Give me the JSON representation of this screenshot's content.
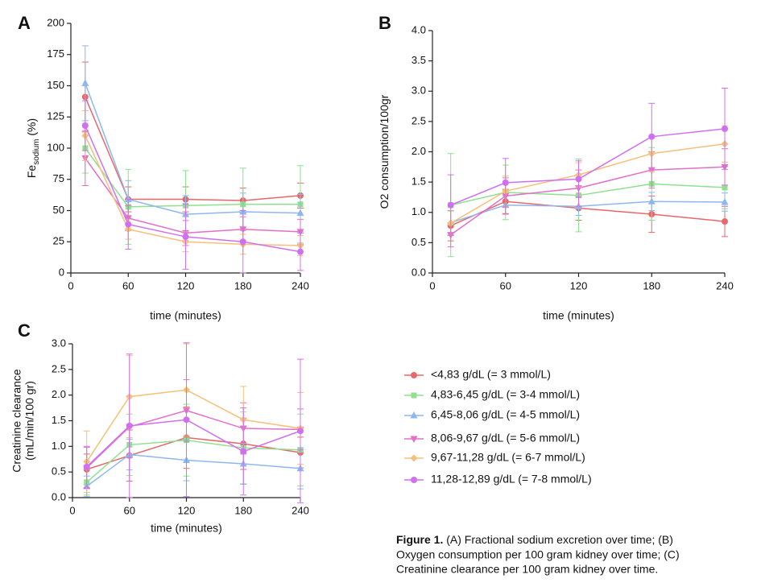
{
  "chart_data": [
    {
      "type": "line",
      "label": "A",
      "ylabel": {
        "main": "Fe",
        "sub": "sodium",
        "suffix": " (%)"
      },
      "xlabel": "time (minutes)",
      "x": [
        15,
        60,
        120,
        180,
        240
      ],
      "xlim": [
        0,
        240
      ],
      "xticks": [
        0,
        60,
        120,
        180,
        240
      ],
      "ylim": [
        0,
        200
      ],
      "yticks": [
        0,
        25,
        50,
        75,
        100,
        125,
        150,
        175,
        200
      ],
      "series": [
        {
          "name": "<4,83 g/dL (= 3 mmol/L)",
          "color": "#e8676b",
          "marker": "circle",
          "values": [
            141,
            59,
            59,
            58,
            62
          ],
          "errors": [
            28,
            10,
            10,
            10,
            10
          ]
        },
        {
          "name": "4,83-6,45 g/dL (= 3-4 mmol/L)",
          "color": "#8fe08f",
          "marker": "square",
          "values": [
            100,
            53,
            54,
            55,
            55
          ],
          "errors": [
            20,
            30,
            28,
            29,
            31
          ]
        },
        {
          "name": "6,45-8,06 g/dL (= 4-5 mmol/L)",
          "color": "#8db8ee",
          "marker": "triangle-up",
          "values": [
            152,
            59,
            47,
            49,
            48
          ],
          "errors": [
            30,
            15,
            15,
            15,
            15
          ]
        },
        {
          "name": "8,06-9,67 g/dL (= 5-6 mmol/L)",
          "color": "#e070c8",
          "marker": "triangle-down",
          "values": [
            92,
            44,
            32,
            35,
            33
          ],
          "errors": [
            22,
            10,
            10,
            10,
            10
          ]
        },
        {
          "name": "9,67-11,28 g/dL (= 6-7 mmol/L)",
          "color": "#f5c07a",
          "marker": "diamond",
          "values": [
            110,
            35,
            25,
            23,
            22
          ],
          "errors": [
            20,
            8,
            8,
            8,
            8
          ]
        },
        {
          "name": "11,28-12,89 g/dL (= 7-8 mmol/L)",
          "color": "#d070f0",
          "marker": "circle",
          "values": [
            118,
            39,
            29,
            25,
            17
          ],
          "errors": [
            20,
            20,
            26,
            25,
            15
          ]
        }
      ]
    },
    {
      "type": "line",
      "label": "B",
      "ylabel": {
        "main": "O2 consumption/100gr"
      },
      "xlabel": "time (minutes)",
      "x": [
        15,
        60,
        120,
        180,
        240
      ],
      "xlim": [
        0,
        240
      ],
      "xticks": [
        0,
        60,
        120,
        180,
        240
      ],
      "ylim": [
        0,
        4
      ],
      "yticks": [
        {
          "value": 0,
          "label": "0.0"
        },
        {
          "value": 0.5,
          "label": "0.5"
        },
        {
          "value": 1,
          "label": "1.0"
        },
        {
          "value": 1.5,
          "label": "1.5"
        },
        {
          "value": 2,
          "label": "2.0"
        },
        {
          "value": 2.5,
          "label": "2.5"
        },
        {
          "value": 3,
          "label": "3.0"
        },
        {
          "value": 3.5,
          "label": "3.5"
        },
        {
          "value": 4,
          "label": "4.0"
        }
      ],
      "series": [
        {
          "color": "#e8676b",
          "marker": "circle",
          "values": [
            0.78,
            1.18,
            1.07,
            0.97,
            0.85
          ],
          "errors": [
            0.25,
            0.2,
            0.2,
            0.3,
            0.25
          ]
        },
        {
          "color": "#8fe08f",
          "marker": "square",
          "values": [
            1.12,
            1.33,
            1.28,
            1.47,
            1.41
          ],
          "errors": [
            0.85,
            0.45,
            0.6,
            0.6,
            0.35
          ]
        },
        {
          "color": "#8db8ee",
          "marker": "triangle-up",
          "values": [
            0.83,
            1.12,
            1.1,
            1.18,
            1.17
          ],
          "errors": [
            0.2,
            0.15,
            0.15,
            0.15,
            0.15
          ]
        },
        {
          "color": "#e070c8",
          "marker": "triangle-down",
          "values": [
            0.63,
            1.27,
            1.4,
            1.7,
            1.75
          ],
          "errors": [
            0.2,
            0.3,
            0.3,
            0.3,
            0.3
          ]
        },
        {
          "color": "#f5c07a",
          "marker": "diamond",
          "values": [
            0.82,
            1.35,
            1.62,
            1.97,
            2.13
          ],
          "errors": [
            0.2,
            0.25,
            0.2,
            0.3,
            0.3
          ]
        },
        {
          "color": "#d070f0",
          "marker": "circle",
          "values": [
            1.12,
            1.49,
            1.55,
            2.25,
            2.38
          ],
          "errors": [
            0.5,
            0.4,
            0.3,
            0.55,
            0.67
          ]
        }
      ]
    },
    {
      "type": "line",
      "label": "C",
      "ylabel": {
        "lines": [
          "Creatinine clearance",
          "(mL/min/100 gr)"
        ]
      },
      "xlabel": "time (minutes)",
      "x": [
        15,
        60,
        120,
        180,
        240
      ],
      "xlim": [
        0,
        240
      ],
      "xticks": [
        0,
        60,
        120,
        180,
        240
      ],
      "ylim": [
        0,
        3
      ],
      "yticks": [
        {
          "value": 0,
          "label": "0.0"
        },
        {
          "value": 0.5,
          "label": "0.5"
        },
        {
          "value": 1,
          "label": "1.0"
        },
        {
          "value": 1.5,
          "label": "1.5"
        },
        {
          "value": 2,
          "label": "2.0"
        },
        {
          "value": 2.5,
          "label": "2.5"
        },
        {
          "value": 3,
          "label": "3.0"
        }
      ],
      "series": [
        {
          "color": "#e8676b",
          "marker": "circle",
          "values": [
            0.55,
            0.82,
            1.17,
            1.05,
            0.88
          ],
          "errors": [
            0.3,
            0.5,
            0.6,
            0.5,
            0.3
          ]
        },
        {
          "color": "#8fe08f",
          "marker": "square",
          "values": [
            0.3,
            1.03,
            1.12,
            0.97,
            0.93
          ],
          "errors": [
            0.25,
            0.6,
            0.7,
            0.7,
            0.7
          ]
        },
        {
          "color": "#8db8ee",
          "marker": "triangle-up",
          "values": [
            0.22,
            0.84,
            0.73,
            0.66,
            0.57
          ],
          "errors": [
            0.2,
            0.3,
            0.4,
            0.4,
            0.4
          ]
        },
        {
          "color": "#e070c8",
          "marker": "triangle-down",
          "values": [
            0.58,
            1.38,
            1.7,
            1.35,
            1.33
          ],
          "errors": [
            0.4,
            0.6,
            0.6,
            0.5,
            0.4
          ]
        },
        {
          "color": "#f5c07a",
          "marker": "diamond",
          "values": [
            0.7,
            1.97,
            2.1,
            1.52,
            1.35
          ],
          "errors": [
            0.6,
            0.8,
            0.9,
            0.65,
            0.7
          ]
        },
        {
          "color": "#d070f0",
          "marker": "circle",
          "values": [
            0.6,
            1.4,
            1.52,
            0.9,
            1.3
          ],
          "errors": [
            0.4,
            1.4,
            1.5,
            0.85,
            1.4
          ]
        }
      ]
    }
  ],
  "caption": {
    "bold": "Figure 1.",
    "lines": [
      " (A) Fractional sodium excretion over time; (B)",
      "Oxygen consumption per 100 gram kidney over time; (C)",
      "Creatinine clearance per 100 gram kidney over time."
    ]
  }
}
